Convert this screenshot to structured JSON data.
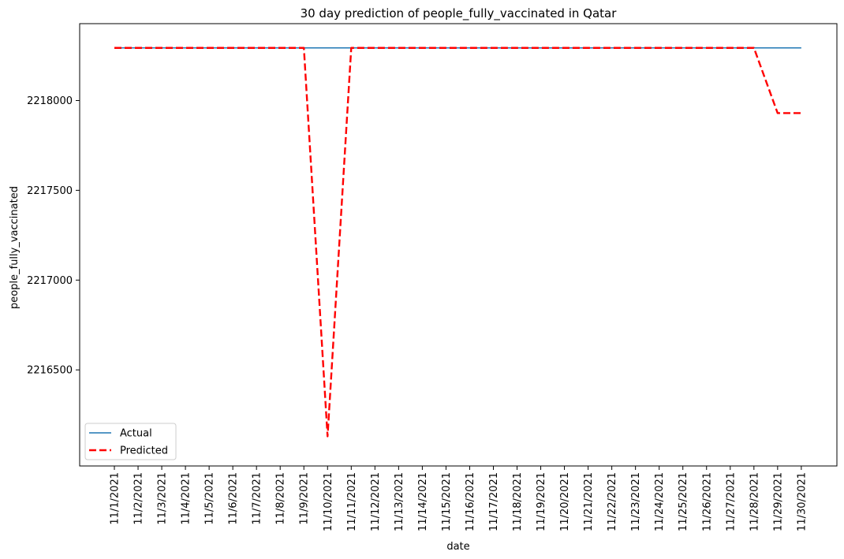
{
  "chart_data": {
    "type": "line",
    "title": "30 day prediction of people_fully_vaccinated in Qatar",
    "xlabel": "date",
    "ylabel": "people_fully_vaccinated",
    "categories": [
      "11/1/2021",
      "11/2/2021",
      "11/3/2021",
      "11/4/2021",
      "11/5/2021",
      "11/6/2021",
      "11/7/2021",
      "11/8/2021",
      "11/9/2021",
      "11/10/2021",
      "11/11/2021",
      "11/12/2021",
      "11/13/2021",
      "11/14/2021",
      "11/15/2021",
      "11/16/2021",
      "11/17/2021",
      "11/18/2021",
      "11/19/2021",
      "11/20/2021",
      "11/21/2021",
      "11/22/2021",
      "11/23/2021",
      "11/24/2021",
      "11/25/2021",
      "11/26/2021",
      "11/27/2021",
      "11/28/2021",
      "11/29/2021",
      "11/30/2021"
    ],
    "yticks": [
      2216500,
      2217000,
      2217500,
      2218000
    ],
    "ylim": [
      2215965,
      2218428
    ],
    "grid": false,
    "legend_position": "lower-left",
    "series": [
      {
        "name": "Actual",
        "color": "#1f77b4",
        "style": "solid",
        "values": [
          2218293,
          2218293,
          2218293,
          2218293,
          2218293,
          2218293,
          2218293,
          2218293,
          2218293,
          2218293,
          2218293,
          2218293,
          2218293,
          2218293,
          2218293,
          2218293,
          2218293,
          2218293,
          2218293,
          2218293,
          2218293,
          2218293,
          2218293,
          2218293,
          2218293,
          2218293,
          2218293,
          2218293,
          2218293,
          2218293
        ]
      },
      {
        "name": "Predicted",
        "color": "#ff0000",
        "style": "dashed",
        "values": [
          2218293,
          2218293,
          2218293,
          2218293,
          2218293,
          2218293,
          2218293,
          2218293,
          2218293,
          2216130,
          2218293,
          2218293,
          2218293,
          2218293,
          2218293,
          2218293,
          2218293,
          2218293,
          2218293,
          2218293,
          2218293,
          2218293,
          2218293,
          2218293,
          2218293,
          2218293,
          2218293,
          2218293,
          2217930,
          2217930
        ]
      }
    ]
  }
}
